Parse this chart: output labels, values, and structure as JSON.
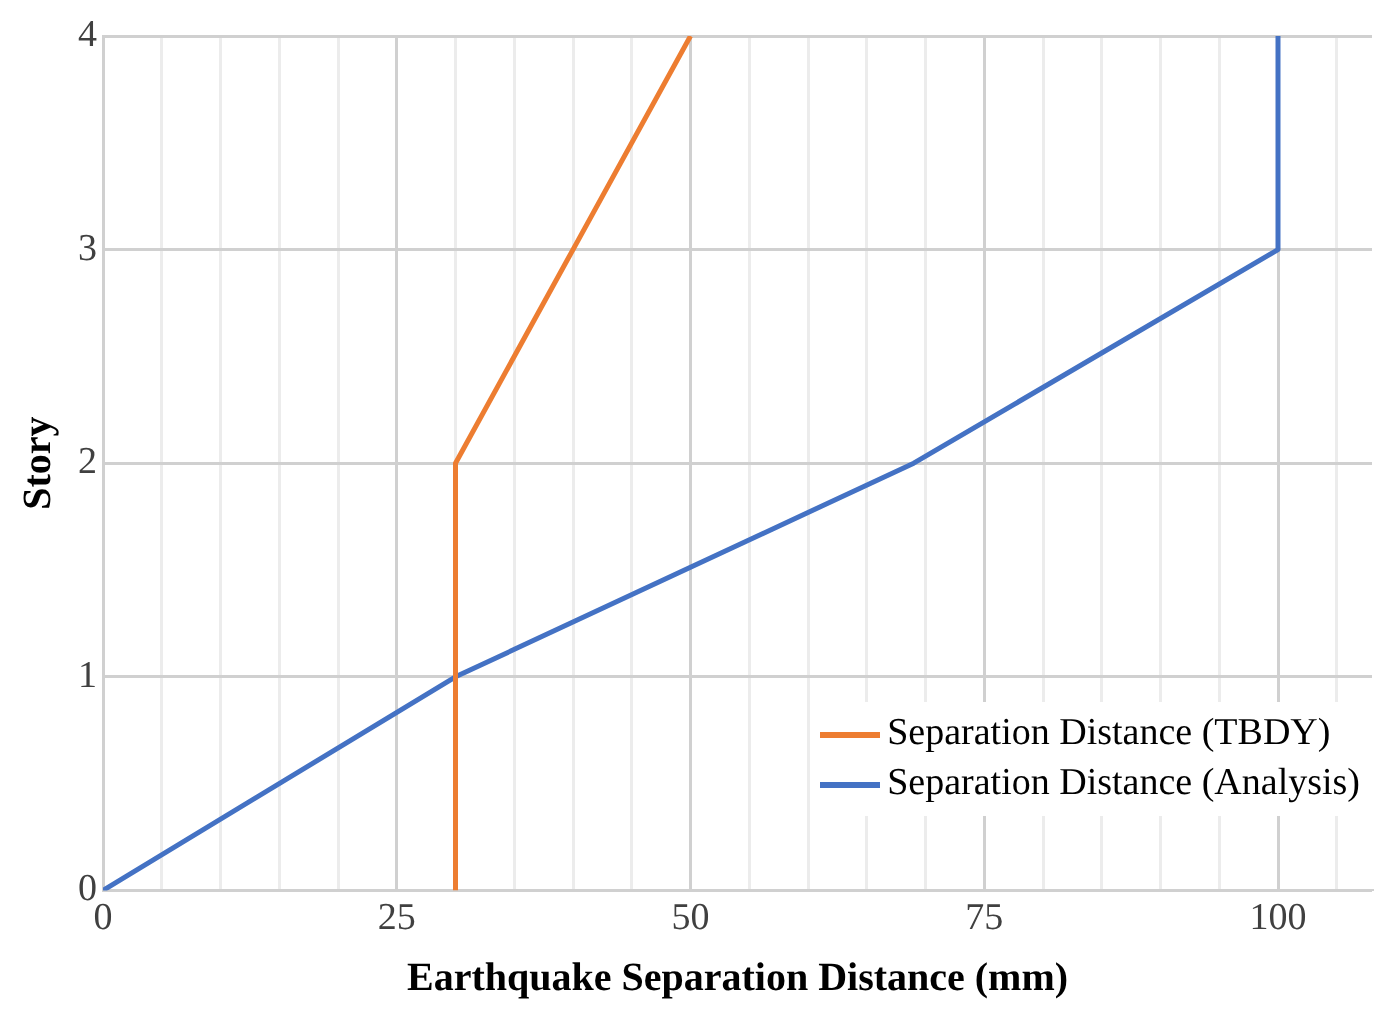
{
  "chart_data": {
    "type": "line",
    "xlabel": "Earthquake Separation Distance (mm)",
    "ylabel": "Story",
    "xlim": [
      0,
      108
    ],
    "xticks": [
      0,
      {
        "value": 5,
        "label": null
      },
      {
        "value": 10,
        "label": null
      },
      {
        "value": 15,
        "label": null
      },
      {
        "value": 20,
        "label": null
      },
      25,
      {
        "value": 30,
        "label": null
      },
      {
        "value": 35,
        "label": null
      },
      {
        "value": 40,
        "label": null
      },
      {
        "value": 45,
        "label": null
      },
      50,
      {
        "value": 55,
        "label": null
      },
      {
        "value": 60,
        "label": null
      },
      {
        "value": 65,
        "label": null
      },
      {
        "value": 70,
        "label": null
      },
      75,
      {
        "value": 80,
        "label": null
      },
      {
        "value": 85,
        "label": null
      },
      {
        "value": 90,
        "label": null
      },
      {
        "value": 95,
        "label": null
      },
      100,
      {
        "value": 105,
        "label": null
      }
    ],
    "ylim": [
      0,
      4
    ],
    "yticks": [
      0,
      1,
      2,
      3,
      4
    ],
    "grid": true,
    "legend": "bottom right",
    "marker": "none",
    "line_style": "solid",
    "series": [
      {
        "name": "Separation Distance (TBDY)",
        "color": "#ed7d31",
        "x": [
          30,
          30,
          30,
          40,
          50
        ],
        "values": [
          0,
          1,
          2,
          3,
          4
        ]
      },
      {
        "name": "Separation Distance (Analysis)",
        "color": "#4472c4",
        "x": [
          0,
          30,
          69,
          100,
          100
        ],
        "values": [
          0,
          1,
          2,
          3,
          4
        ]
      }
    ]
  }
}
